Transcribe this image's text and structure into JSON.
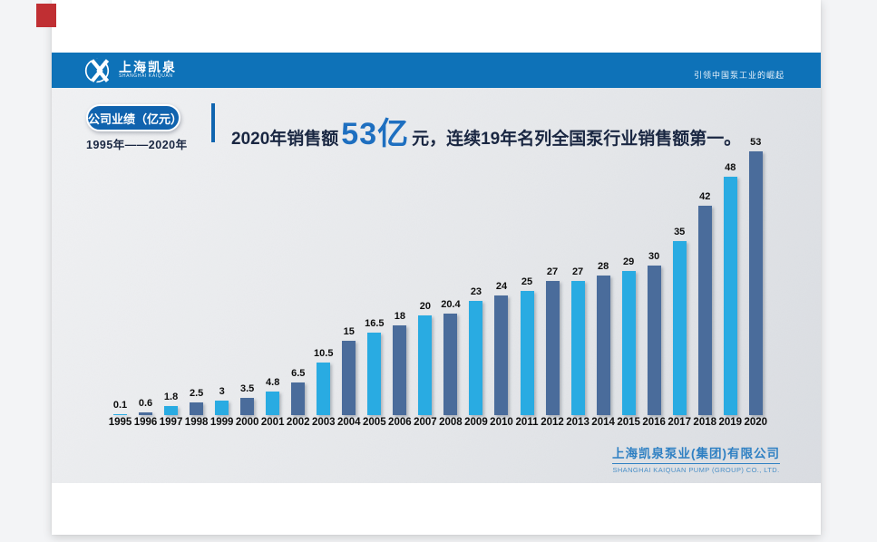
{
  "header": {
    "logo_cn": "上海凯泉",
    "logo_en": "SHANGHAI KAIQUAN",
    "slogan": "引领中国泵工业的崛起"
  },
  "badge": {
    "label": "公司业绩（亿元）",
    "range": "1995年——2020年"
  },
  "headline": {
    "prefix": "2020年销售额 ",
    "highlight": "53亿",
    "suffix": "元，连续19年名列全国泵行业销售额第一。"
  },
  "footer": {
    "company_cn": "上海凯泉泵业(集团)有限公司",
    "company_en": "SHANGHAI KAIQUAN PUMP (GROUP) CO., LTD."
  },
  "colors": {
    "header_blue": "#0e72b8",
    "badge_blue": "#1063ae",
    "highlight_blue": "#1e6fc0",
    "dark_text": "#1a2742",
    "company_blue": "#2f80c3",
    "red_marker": "#c02f33"
  },
  "chart_data": {
    "type": "bar",
    "title": "公司业绩（亿元）",
    "xlabel": "",
    "ylabel": "亿元",
    "categories": [
      "1995",
      "1996",
      "1997",
      "1998",
      "1999",
      "2000",
      "2001",
      "2002",
      "2003",
      "2004",
      "2005",
      "2006",
      "2007",
      "2008",
      "2009",
      "2010",
      "2011",
      "2012",
      "2013",
      "2014",
      "2015",
      "2016",
      "2017",
      "2018",
      "2019",
      "2020"
    ],
    "values": [
      0.1,
      0.6,
      1.8,
      2.5,
      3,
      3.5,
      4.8,
      6.5,
      10.5,
      15,
      16.5,
      18,
      20,
      20.4,
      23,
      24,
      25,
      27,
      27,
      28,
      29,
      30,
      35,
      42,
      48,
      53
    ],
    "ylim": [
      0,
      53
    ],
    "grid": false,
    "legend": false,
    "value_labels": true,
    "bar_color_odd_year": "#29abe2",
    "bar_color_even_year": "#4a6c9b"
  }
}
